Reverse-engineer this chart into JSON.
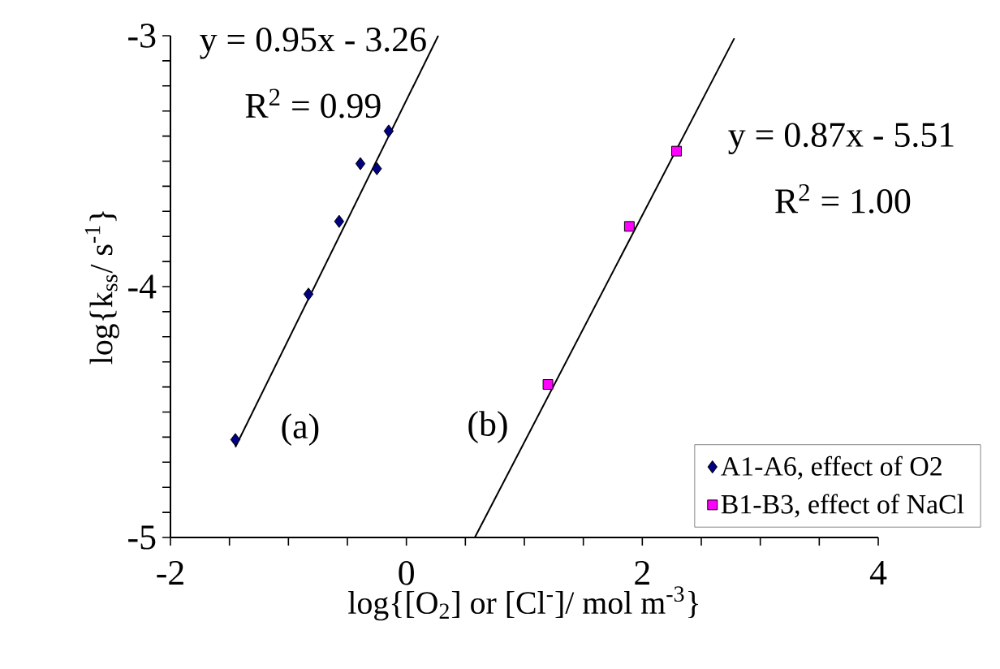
{
  "chart_data": {
    "type": "scatter",
    "xlabel": "log{[O$_{2}$] or [Cl$^{-}$]/ mol m$^{-3}$}",
    "ylabel": "log{k$_{ss}$/ s$^{-1}$}",
    "series": [
      {
        "name": "A1-A6, effect of O2",
        "marker": "diamond",
        "color": "#000080",
        "x": [
          -1.45,
          -0.83,
          -0.57,
          -0.39,
          -0.25,
          -0.15
        ],
        "values": [
          -4.61,
          -4.03,
          -3.74,
          -3.51,
          -3.53,
          -3.38
        ]
      },
      {
        "name": "B1-B3, effect of NaCl",
        "marker": "square",
        "color": "#ff00ff",
        "x": [
          1.2,
          1.89,
          2.29
        ],
        "values": [
          -4.39,
          -3.76,
          -3.46
        ]
      },
      {
        "type": "line",
        "marker": "none",
        "color": "#000000",
        "x": [
          -1.45,
          0.27
        ],
        "values": [
          -4.64,
          -3.0
        ]
      },
      {
        "type": "line",
        "marker": "none",
        "color": "#000000",
        "x": [
          0.58,
          2.78
        ],
        "values": [
          -5.0,
          -3.01
        ]
      }
    ],
    "annotations": [
      "y = 0.95x - 3.26",
      "R$^{2}$ = 0.99",
      "y = 0.87x - 5.51",
      "R$^{2}$ = 1.00",
      "(a)",
      "(b)"
    ],
    "xlim": [
      -2,
      4
    ],
    "ylim": [
      -5,
      -3
    ],
    "xticks": [
      -2,
      0,
      2,
      4
    ],
    "yticks": [
      -5,
      -4,
      -3
    ],
    "legend": "bottom right"
  }
}
